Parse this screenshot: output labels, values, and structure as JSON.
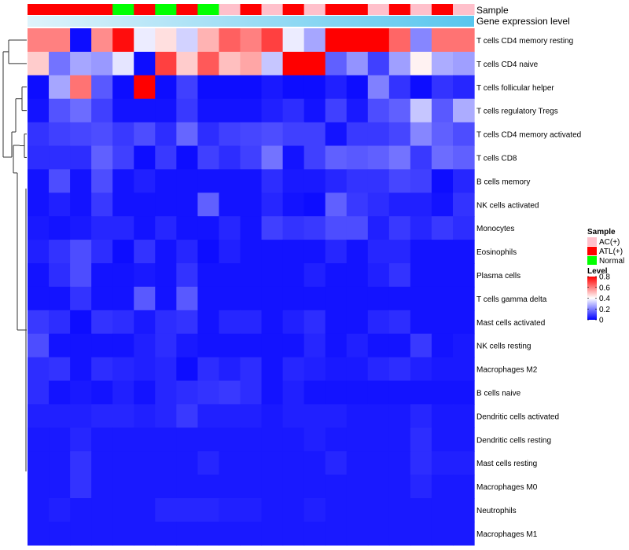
{
  "chart_data": {
    "type": "heatmap",
    "annotation_labels": {
      "sample": "Sample",
      "expression": "Gene expression level"
    },
    "legend": {
      "sample_title": "Sample",
      "sample_entries": [
        {
          "label": "AC(+)",
          "color": "#ffc0cb"
        },
        {
          "label": "ATL(+)",
          "color": "#ff0000"
        },
        {
          "label": "Normal",
          "color": "#00ff00"
        }
      ],
      "level_title": "Level",
      "level_ticks": [
        "0.8",
        "0.6",
        "0.4",
        "0.2",
        "0"
      ],
      "level_tick_values": [
        0.8,
        0.6,
        0.4,
        0.2,
        0
      ]
    },
    "color_scale": {
      "low": "#0000ff",
      "mid": "#ffffff",
      "high": "#ff0000",
      "min": 0,
      "mid_value": 0.4,
      "max": 0.8
    },
    "column_samples": [
      "ATL(+)",
      "ATL(+)",
      "ATL(+)",
      "ATL(+)",
      "Normal",
      "ATL(+)",
      "Normal",
      "ATL(+)",
      "Normal",
      "AC(+)",
      "ATL(+)",
      "AC(+)",
      "ATL(+)",
      "AC(+)",
      "ATL(+)",
      "ATL(+)",
      "AC(+)",
      "ATL(+)",
      "AC(+)",
      "ATL(+)",
      "AC(+)"
    ],
    "expression_gradient": [
      "#dff3fb",
      "#58c6ee"
    ],
    "rows": [
      "T cells CD4 memory resting",
      "T cells CD4 naive",
      "T cells follicular helper",
      "T cells regulatory  Tregs",
      "T cells CD4 memory activated",
      "T cells CD8",
      "B cells memory",
      "NK cells activated",
      "Monocytes",
      "Eosinophils",
      "Plasma cells",
      "T cells gamma delta",
      "Mast cells activated",
      "NK cells resting",
      "Macrophages M2",
      "B cells naive",
      "Dendritic cells activated",
      "Dendritic cells resting",
      "Mast cells resting",
      "Macrophages M0",
      "Neutrophils",
      "Macrophages M1"
    ],
    "values": [
      [
        0.6,
        0.6,
        0.02,
        0.58,
        0.78,
        0.37,
        0.45,
        0.33,
        0.52,
        0.65,
        0.6,
        0.7,
        0.37,
        0.26,
        0.8,
        0.8,
        0.8,
        0.64,
        0.21,
        0.62,
        0.62
      ],
      [
        0.48,
        0.18,
        0.26,
        0.24,
        0.36,
        0.02,
        0.7,
        0.48,
        0.66,
        0.5,
        0.54,
        0.31,
        0.8,
        0.8,
        0.15,
        0.23,
        0.1,
        0.25,
        0.42,
        0.27,
        0.25
      ],
      [
        0.02,
        0.26,
        0.62,
        0.14,
        0.02,
        0.8,
        0.02,
        0.1,
        0.02,
        0.02,
        0.02,
        0.04,
        0.02,
        0.02,
        0.05,
        0.02,
        0.2,
        0.08,
        0.02,
        0.08,
        0.06
      ],
      [
        0.03,
        0.13,
        0.17,
        0.1,
        0.03,
        0.03,
        0.03,
        0.09,
        0.03,
        0.03,
        0.03,
        0.05,
        0.07,
        0.03,
        0.1,
        0.04,
        0.12,
        0.15,
        0.31,
        0.14,
        0.27
      ],
      [
        0.08,
        0.1,
        0.11,
        0.12,
        0.09,
        0.12,
        0.07,
        0.16,
        0.07,
        0.1,
        0.11,
        0.12,
        0.1,
        0.1,
        0.03,
        0.09,
        0.09,
        0.11,
        0.21,
        0.15,
        0.12
      ],
      [
        0.07,
        0.07,
        0.07,
        0.15,
        0.1,
        0.02,
        0.09,
        0.02,
        0.1,
        0.07,
        0.1,
        0.18,
        0.03,
        0.1,
        0.15,
        0.14,
        0.15,
        0.18,
        0.09,
        0.17,
        0.15
      ],
      [
        0.03,
        0.12,
        0.03,
        0.12,
        0.03,
        0.05,
        0.03,
        0.03,
        0.03,
        0.03,
        0.03,
        0.07,
        0.04,
        0.04,
        0.06,
        0.08,
        0.08,
        0.11,
        0.1,
        0.02,
        0.06
      ],
      [
        0.03,
        0.05,
        0.03,
        0.09,
        0.03,
        0.03,
        0.03,
        0.03,
        0.15,
        0.03,
        0.03,
        0.06,
        0.03,
        0.02,
        0.15,
        0.09,
        0.07,
        0.05,
        0.05,
        0.03,
        0.08
      ],
      [
        0.04,
        0.03,
        0.04,
        0.06,
        0.06,
        0.03,
        0.06,
        0.03,
        0.03,
        0.06,
        0.03,
        0.1,
        0.08,
        0.09,
        0.12,
        0.12,
        0.05,
        0.09,
        0.06,
        0.09,
        0.07
      ],
      [
        0.05,
        0.08,
        0.12,
        0.07,
        0.02,
        0.08,
        0.03,
        0.06,
        0.02,
        0.05,
        0.03,
        0.03,
        0.03,
        0.03,
        0.06,
        0.03,
        0.06,
        0.06,
        0.03,
        0.03,
        0.03
      ],
      [
        0.03,
        0.07,
        0.12,
        0.03,
        0.03,
        0.04,
        0.03,
        0.08,
        0.03,
        0.03,
        0.03,
        0.03,
        0.03,
        0.05,
        0.03,
        0.03,
        0.05,
        0.08,
        0.03,
        0.03,
        0.03
      ],
      [
        0.03,
        0.03,
        0.08,
        0.03,
        0.03,
        0.14,
        0.03,
        0.14,
        0.03,
        0.03,
        0.03,
        0.03,
        0.03,
        0.03,
        0.03,
        0.03,
        0.03,
        0.03,
        0.03,
        0.03,
        0.03
      ],
      [
        0.09,
        0.07,
        0.02,
        0.08,
        0.07,
        0.04,
        0.07,
        0.08,
        0.03,
        0.06,
        0.06,
        0.03,
        0.05,
        0.07,
        0.03,
        0.03,
        0.06,
        0.07,
        0.03,
        0.03,
        0.03
      ],
      [
        0.12,
        0.03,
        0.03,
        0.03,
        0.03,
        0.05,
        0.07,
        0.04,
        0.03,
        0.03,
        0.03,
        0.03,
        0.03,
        0.06,
        0.03,
        0.05,
        0.03,
        0.03,
        0.09,
        0.03,
        0.04
      ],
      [
        0.07,
        0.08,
        0.03,
        0.07,
        0.06,
        0.05,
        0.06,
        0.02,
        0.07,
        0.05,
        0.07,
        0.03,
        0.06,
        0.05,
        0.04,
        0.04,
        0.06,
        0.07,
        0.05,
        0.04,
        0.04
      ],
      [
        0.07,
        0.03,
        0.04,
        0.03,
        0.05,
        0.03,
        0.06,
        0.07,
        0.08,
        0.09,
        0.07,
        0.03,
        0.05,
        0.03,
        0.03,
        0.03,
        0.03,
        0.03,
        0.03,
        0.03,
        0.03
      ],
      [
        0.05,
        0.05,
        0.05,
        0.06,
        0.06,
        0.05,
        0.06,
        0.09,
        0.05,
        0.05,
        0.05,
        0.04,
        0.05,
        0.05,
        0.05,
        0.04,
        0.04,
        0.04,
        0.06,
        0.04,
        0.04
      ],
      [
        0.04,
        0.04,
        0.06,
        0.04,
        0.04,
        0.04,
        0.04,
        0.04,
        0.04,
        0.04,
        0.04,
        0.04,
        0.04,
        0.05,
        0.04,
        0.04,
        0.04,
        0.04,
        0.07,
        0.04,
        0.04
      ],
      [
        0.04,
        0.04,
        0.08,
        0.04,
        0.04,
        0.04,
        0.04,
        0.04,
        0.06,
        0.04,
        0.04,
        0.04,
        0.04,
        0.04,
        0.06,
        0.04,
        0.04,
        0.04,
        0.07,
        0.05,
        0.05
      ],
      [
        0.04,
        0.04,
        0.08,
        0.04,
        0.04,
        0.04,
        0.04,
        0.04,
        0.04,
        0.04,
        0.04,
        0.04,
        0.04,
        0.04,
        0.04,
        0.04,
        0.04,
        0.04,
        0.06,
        0.04,
        0.04
      ],
      [
        0.04,
        0.05,
        0.04,
        0.04,
        0.04,
        0.04,
        0.06,
        0.06,
        0.06,
        0.05,
        0.05,
        0.04,
        0.04,
        0.05,
        0.04,
        0.04,
        0.04,
        0.04,
        0.04,
        0.04,
        0.04
      ],
      [
        0.04,
        0.04,
        0.04,
        0.04,
        0.04,
        0.04,
        0.04,
        0.04,
        0.04,
        0.04,
        0.04,
        0.04,
        0.04,
        0.04,
        0.04,
        0.04,
        0.04,
        0.04,
        0.04,
        0.04,
        0.04
      ]
    ]
  }
}
